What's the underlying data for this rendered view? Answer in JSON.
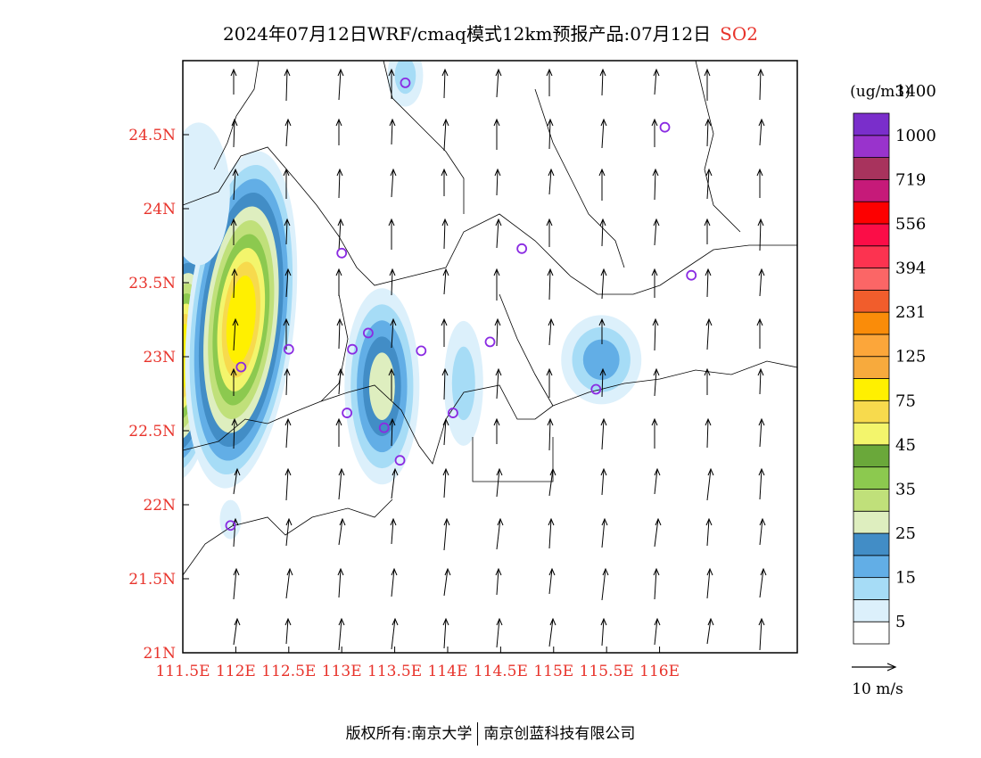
{
  "title": {
    "text": "2024年07月12日WRF/cmaq模式12km预报产品:07月12日",
    "species": "SO2",
    "species_color": "#e8332b"
  },
  "axes": {
    "lon_labels": [
      "111.5E",
      "112E",
      "112.5E",
      "113E",
      "113.5E",
      "114E",
      "114.5E",
      "115E",
      "115.5E",
      "116E"
    ],
    "lon_values": [
      111.5,
      112.0,
      112.5,
      113.0,
      113.5,
      114.0,
      114.5,
      115.0,
      115.5,
      116.0
    ],
    "lat_labels": [
      "21N",
      "21.5N",
      "22N",
      "22.5N",
      "23N",
      "23.5N",
      "24N",
      "24.5N"
    ],
    "lat_values": [
      21.0,
      21.5,
      22.0,
      22.5,
      23.0,
      23.5,
      24.0,
      24.5
    ],
    "lon_range": [
      111.5,
      117.3
    ],
    "lat_range": [
      21.0,
      25.0
    ],
    "label_color": "#e8332b"
  },
  "colorbar": {
    "unit": "(ug/m3)",
    "labels": [
      "5",
      "15",
      "25",
      "35",
      "45",
      "75",
      "125",
      "231",
      "394",
      "556",
      "719",
      "1000",
      "1400"
    ],
    "colors": [
      "#ffffff",
      "#dcf0fb",
      "#a6dcf6",
      "#62aee6",
      "#428dc6",
      "#deeebf",
      "#c0e07a",
      "#8cc94f",
      "#6aa83a",
      "#f3f56c",
      "#f7da4d",
      "#fff000",
      "#f7aa3d",
      "#fca63a",
      "#fa8c09",
      "#f15d2c",
      "#fb6666",
      "#fc3350",
      "#fb0d47",
      "#fd0000",
      "#c61a79",
      "#a8335d",
      "#9933cc",
      "#7a2ecb"
    ]
  },
  "vector_legend": {
    "label": "10 m/s"
  },
  "stations": [
    {
      "lon": 113.6,
      "lat": 24.85
    },
    {
      "lon": 116.05,
      "lat": 24.55
    },
    {
      "lon": 113.0,
      "lat": 23.7
    },
    {
      "lon": 114.7,
      "lat": 23.73
    },
    {
      "lon": 116.3,
      "lat": 23.55
    },
    {
      "lon": 112.5,
      "lat": 23.05
    },
    {
      "lon": 113.1,
      "lat": 23.05
    },
    {
      "lon": 113.25,
      "lat": 23.16
    },
    {
      "lon": 113.75,
      "lat": 23.04
    },
    {
      "lon": 114.4,
      "lat": 23.1
    },
    {
      "lon": 112.05,
      "lat": 22.93
    },
    {
      "lon": 113.05,
      "lat": 22.62
    },
    {
      "lon": 113.4,
      "lat": 22.52
    },
    {
      "lon": 114.05,
      "lat": 22.62
    },
    {
      "lon": 115.4,
      "lat": 22.78
    },
    {
      "lon": 113.55,
      "lat": 22.3
    },
    {
      "lon": 111.95,
      "lat": 21.86
    }
  ],
  "footer": {
    "left": "版权所有:南京大学",
    "right": "南京创蓝科技有限公司"
  }
}
